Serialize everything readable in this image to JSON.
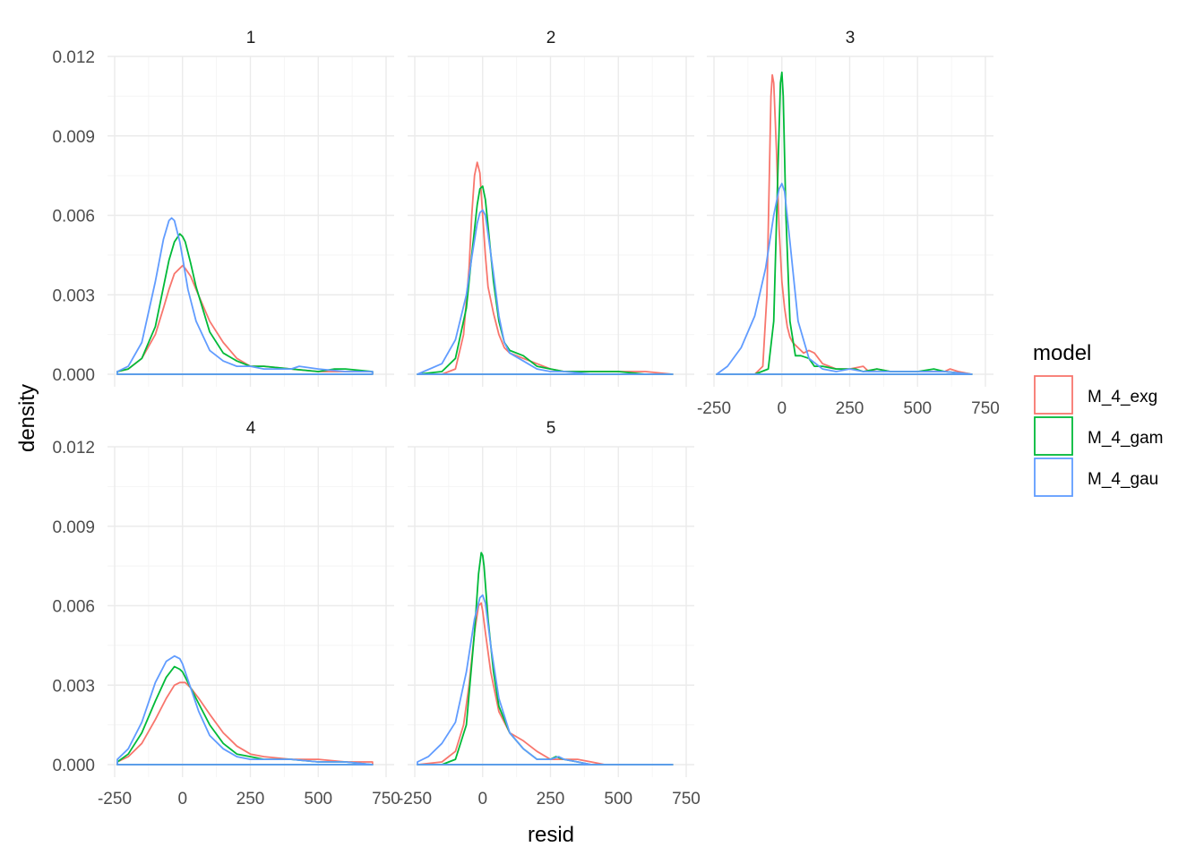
{
  "chart_data": {
    "type": "line",
    "kind": "faceted density plot",
    "xlabel": "resid",
    "ylabel": "density",
    "xlim": [
      -250,
      750
    ],
    "ylim": [
      0,
      0.012
    ],
    "x_ticks": [
      "-250",
      "0",
      "250",
      "500",
      "750"
    ],
    "y_ticks": [
      "0.000",
      "0.003",
      "0.006",
      "0.009",
      "0.012"
    ],
    "grid": true,
    "legend": {
      "title": "model",
      "position": "right",
      "entries": [
        "M_4_exg",
        "M_4_gam",
        "M_4_gau"
      ]
    },
    "colors": {
      "M_4_exg": "#F8766D",
      "M_4_gam": "#00BA38",
      "M_4_gau": "#619CFF"
    },
    "facets": [
      {
        "label": "1",
        "series": [
          {
            "name": "M_4_exg",
            "x": [
              -240,
              -200,
              -150,
              -100,
              -70,
              -50,
              -30,
              -10,
              0,
              10,
              30,
              50,
              100,
              150,
              200,
              250,
              300,
              400,
              500,
              600,
              700
            ],
            "y": [
              0.0001,
              0.0002,
              0.0006,
              0.0015,
              0.0025,
              0.0032,
              0.0038,
              0.004,
              0.0041,
              0.004,
              0.0037,
              0.0032,
              0.002,
              0.0012,
              0.0006,
              0.0003,
              0.0003,
              0.0002,
              0.0001,
              0.0001,
              0.0001
            ]
          },
          {
            "name": "M_4_gam",
            "x": [
              -240,
              -200,
              -150,
              -100,
              -70,
              -50,
              -30,
              -10,
              0,
              10,
              30,
              50,
              100,
              150,
              200,
              250,
              300,
              400,
              500,
              560,
              600,
              700
            ],
            "y": [
              0.0001,
              0.0002,
              0.0006,
              0.0018,
              0.0033,
              0.0043,
              0.005,
              0.0053,
              0.0052,
              0.005,
              0.0042,
              0.0033,
              0.0016,
              0.0008,
              0.0005,
              0.0003,
              0.0003,
              0.0002,
              0.0001,
              0.0002,
              0.0002,
              0.0001
            ]
          },
          {
            "name": "M_4_gau",
            "x": [
              -240,
              -200,
              -150,
              -100,
              -70,
              -50,
              -40,
              -30,
              -10,
              0,
              20,
              50,
              100,
              150,
              200,
              250,
              300,
              400,
              430,
              500,
              600,
              700
            ],
            "y": [
              0.0001,
              0.0003,
              0.0012,
              0.0035,
              0.0051,
              0.0058,
              0.0059,
              0.0058,
              0.005,
              0.0044,
              0.0032,
              0.002,
              0.0009,
              0.0005,
              0.0003,
              0.0003,
              0.0002,
              0.0002,
              0.0003,
              0.0002,
              0.0001,
              0.0001
            ]
          }
        ]
      },
      {
        "label": "2",
        "series": [
          {
            "name": "M_4_exg",
            "x": [
              -240,
              -150,
              -100,
              -70,
              -50,
              -40,
              -30,
              -20,
              -10,
              0,
              10,
              20,
              40,
              60,
              80,
              100,
              150,
              200,
              250,
              300,
              400,
              500,
              600,
              700
            ],
            "y": [
              0.0,
              0.0,
              0.0002,
              0.0015,
              0.004,
              0.006,
              0.0075,
              0.008,
              0.0076,
              0.006,
              0.0045,
              0.0033,
              0.0023,
              0.0015,
              0.001,
              0.0008,
              0.0006,
              0.0004,
              0.0002,
              0.0001,
              0.0001,
              0.0001,
              0.0001,
              0.0
            ]
          },
          {
            "name": "M_4_gam",
            "x": [
              -240,
              -150,
              -100,
              -60,
              -40,
              -20,
              -10,
              0,
              10,
              20,
              40,
              60,
              80,
              100,
              150,
              200,
              250,
              300,
              400,
              500,
              600,
              700
            ],
            "y": [
              0.0,
              0.0001,
              0.0006,
              0.0025,
              0.0045,
              0.0064,
              0.007,
              0.0071,
              0.0066,
              0.0056,
              0.0035,
              0.002,
              0.0012,
              0.0009,
              0.0007,
              0.0003,
              0.0002,
              0.0001,
              0.0001,
              0.0001,
              0.0,
              0.0
            ]
          },
          {
            "name": "M_4_gau",
            "x": [
              -240,
              -150,
              -100,
              -60,
              -40,
              -20,
              -10,
              0,
              10,
              20,
              40,
              60,
              80,
              100,
              150,
              200,
              250,
              300,
              400,
              500,
              600,
              700
            ],
            "y": [
              0.0,
              0.0004,
              0.0013,
              0.003,
              0.0044,
              0.0057,
              0.0061,
              0.0062,
              0.006,
              0.0053,
              0.0038,
              0.0022,
              0.0012,
              0.0008,
              0.0005,
              0.0002,
              0.0001,
              0.0001,
              0.0,
              0.0,
              0.0,
              0.0
            ]
          }
        ]
      },
      {
        "label": "3",
        "series": [
          {
            "name": "M_4_exg",
            "x": [
              -240,
              -100,
              -70,
              -55,
              -45,
              -40,
              -35,
              -30,
              -20,
              -10,
              0,
              10,
              20,
              30,
              40,
              60,
              80,
              100,
              120,
              150,
              200,
              250,
              300,
              320,
              350,
              400,
              500,
              550,
              600,
              620,
              650,
              700
            ],
            "y": [
              0.0,
              0.0,
              0.0003,
              0.003,
              0.008,
              0.0105,
              0.0113,
              0.011,
              0.0085,
              0.0055,
              0.0035,
              0.0025,
              0.0018,
              0.0014,
              0.0012,
              0.001,
              0.0008,
              0.0009,
              0.0008,
              0.0004,
              0.0002,
              0.0002,
              0.0003,
              0.0001,
              0.0002,
              0.0001,
              0.0001,
              0.0001,
              0.0001,
              0.0002,
              0.0001,
              0.0
            ]
          },
          {
            "name": "M_4_gam",
            "x": [
              -240,
              -100,
              -50,
              -30,
              -15,
              -5,
              0,
              5,
              15,
              30,
              50,
              70,
              100,
              120,
              150,
              200,
              250,
              270,
              300,
              350,
              400,
              500,
              560,
              600,
              700
            ],
            "y": [
              0.0,
              0.0,
              0.0002,
              0.002,
              0.0075,
              0.011,
              0.0114,
              0.0105,
              0.006,
              0.002,
              0.0007,
              0.0007,
              0.0006,
              0.0003,
              0.0003,
              0.0002,
              0.0002,
              0.0002,
              0.0001,
              0.0002,
              0.0001,
              0.0001,
              0.0002,
              0.0001,
              0.0
            ]
          },
          {
            "name": "M_4_gau",
            "x": [
              -240,
              -200,
              -150,
              -100,
              -60,
              -30,
              -10,
              0,
              10,
              30,
              60,
              100,
              150,
              200,
              250,
              300,
              400,
              500,
              600,
              700
            ],
            "y": [
              0.0,
              0.0003,
              0.001,
              0.0022,
              0.004,
              0.006,
              0.007,
              0.0072,
              0.0069,
              0.005,
              0.002,
              0.0006,
              0.0002,
              0.0001,
              0.0002,
              0.0001,
              0.0001,
              0.0001,
              0.0001,
              0.0
            ]
          }
        ]
      },
      {
        "label": "4",
        "series": [
          {
            "name": "M_4_exg",
            "x": [
              -240,
              -200,
              -150,
              -100,
              -60,
              -30,
              -10,
              0,
              10,
              30,
              60,
              100,
              150,
              200,
              250,
              300,
              400,
              500,
              600,
              700
            ],
            "y": [
              0.0001,
              0.0003,
              0.0008,
              0.0017,
              0.0025,
              0.003,
              0.0031,
              0.0031,
              0.0031,
              0.0029,
              0.0025,
              0.0019,
              0.0012,
              0.0007,
              0.0004,
              0.0003,
              0.0002,
              0.0002,
              0.0001,
              0.0001
            ]
          },
          {
            "name": "M_4_gam",
            "x": [
              -240,
              -200,
              -150,
              -100,
              -60,
              -30,
              -10,
              0,
              10,
              30,
              60,
              100,
              150,
              200,
              250,
              300,
              400,
              500,
              600,
              700
            ],
            "y": [
              0.0001,
              0.0004,
              0.0012,
              0.0024,
              0.0033,
              0.0037,
              0.0036,
              0.0035,
              0.0033,
              0.0029,
              0.0023,
              0.0015,
              0.0008,
              0.0004,
              0.0003,
              0.0002,
              0.0002,
              0.0001,
              0.0001,
              0.0
            ]
          },
          {
            "name": "M_4_gau",
            "x": [
              -240,
              -200,
              -150,
              -100,
              -60,
              -30,
              -10,
              0,
              10,
              30,
              60,
              100,
              150,
              200,
              250,
              300,
              400,
              500,
              600,
              700
            ],
            "y": [
              0.0002,
              0.0006,
              0.0016,
              0.0031,
              0.0039,
              0.0041,
              0.004,
              0.0038,
              0.0035,
              0.0029,
              0.002,
              0.0011,
              0.0006,
              0.0003,
              0.0002,
              0.0002,
              0.0002,
              0.0001,
              0.0001,
              0.0
            ]
          }
        ]
      },
      {
        "label": "5",
        "series": [
          {
            "name": "M_4_exg",
            "x": [
              -240,
              -150,
              -100,
              -70,
              -50,
              -30,
              -15,
              -5,
              0,
              10,
              30,
              60,
              100,
              150,
              200,
              250,
              280,
              300,
              350,
              400,
              450,
              500,
              600,
              700
            ],
            "y": [
              0.0,
              0.0001,
              0.0005,
              0.0015,
              0.003,
              0.005,
              0.006,
              0.0061,
              0.0058,
              0.005,
              0.0035,
              0.002,
              0.0012,
              0.0009,
              0.0005,
              0.0002,
              0.0002,
              0.0002,
              0.0002,
              0.0001,
              0.0,
              0.0,
              0.0,
              0.0
            ]
          },
          {
            "name": "M_4_gam",
            "x": [
              -240,
              -150,
              -100,
              -60,
              -30,
              -15,
              -5,
              0,
              5,
              20,
              40,
              60,
              100,
              150,
              200,
              250,
              270,
              300,
              350,
              400,
              500,
              600,
              700
            ],
            "y": [
              0.0,
              0.0,
              0.0002,
              0.0015,
              0.005,
              0.0072,
              0.008,
              0.0079,
              0.0075,
              0.0055,
              0.0035,
              0.0022,
              0.0012,
              0.0006,
              0.0002,
              0.0002,
              0.0003,
              0.0002,
              0.0001,
              0.0,
              0.0,
              0.0,
              0.0
            ]
          },
          {
            "name": "M_4_gau",
            "x": [
              -240,
              -200,
              -150,
              -100,
              -60,
              -30,
              -10,
              0,
              10,
              30,
              60,
              100,
              150,
              200,
              250,
              280,
              300,
              350,
              400,
              500,
              600,
              700
            ],
            "y": [
              0.0001,
              0.0003,
              0.0008,
              0.0016,
              0.0035,
              0.0055,
              0.0063,
              0.0064,
              0.0061,
              0.0045,
              0.0025,
              0.0012,
              0.0006,
              0.0002,
              0.0002,
              0.0003,
              0.0002,
              0.0001,
              0.0,
              0.0,
              0.0,
              0.0
            ]
          }
        ]
      }
    ]
  }
}
